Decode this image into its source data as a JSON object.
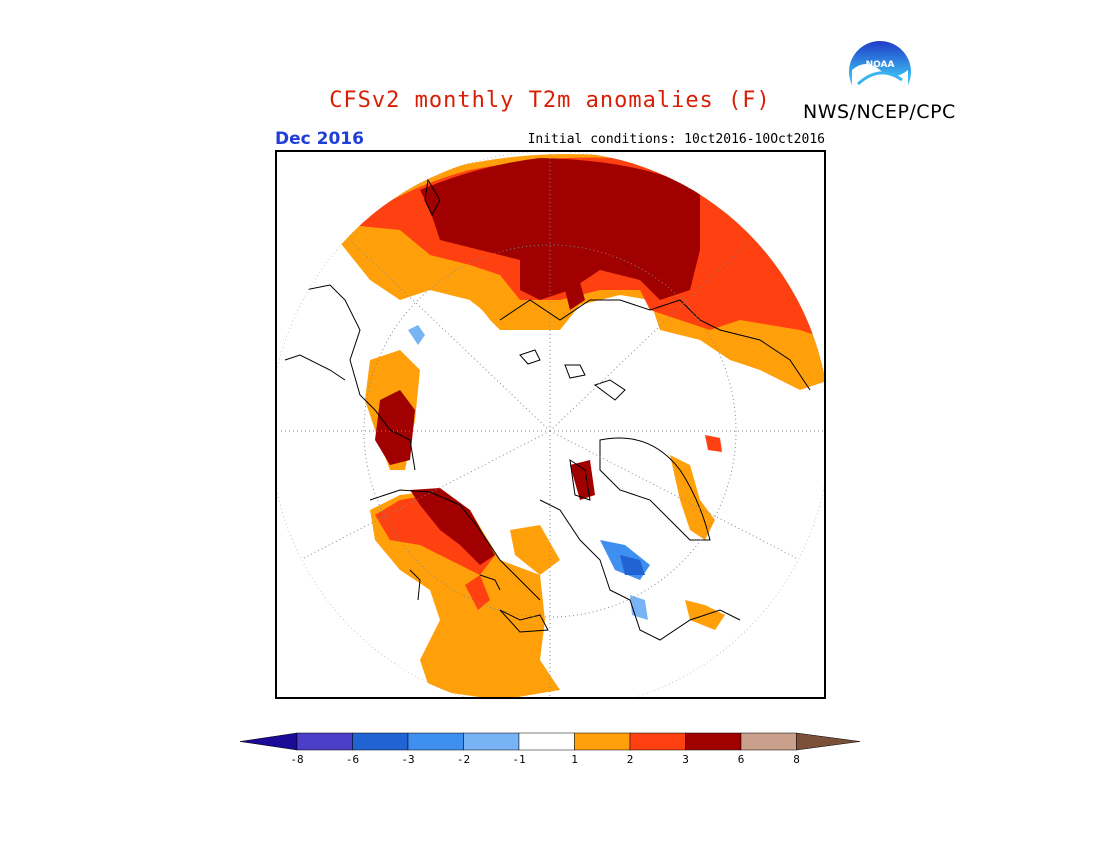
{
  "title": "CFSv2 monthly T2m anomalies (F)",
  "organization": "NWS/NCEP/CPC",
  "logo_text": "NOAA",
  "valid_period": "Dec 2016",
  "initial_conditions": "Initial conditions: 10ct2016-10Oct2016",
  "colors": {
    "title": "#d81e05",
    "period": "#1f3fd6"
  },
  "projection": "polar stereographic, north pole centered",
  "colorbar": {
    "tick_labels": [
      "-8",
      "-6",
      "-3",
      "-2",
      "-1",
      "1",
      "2",
      "3",
      "6",
      "8"
    ],
    "bins": [
      {
        "color": "#1b0b96",
        "range": "< -8"
      },
      {
        "color": "#4b3fc8",
        "range": "-8 to -6"
      },
      {
        "color": "#1f64d2",
        "range": "-6 to -3"
      },
      {
        "color": "#3f8ff0",
        "range": "-3 to -2"
      },
      {
        "color": "#78b4f5",
        "range": "-2 to -1"
      },
      {
        "color": "#ffffff",
        "range": "-1 to 1"
      },
      {
        "color": "#ffa00a",
        "range": "1 to 2"
      },
      {
        "color": "#ff4010",
        "range": "2 to 3"
      },
      {
        "color": "#a00000",
        "range": "3 to 6"
      },
      {
        "color": "#c8a08c",
        "range": "6 to 8"
      },
      {
        "color": "#7a5038",
        "range": "> 8"
      }
    ]
  }
}
